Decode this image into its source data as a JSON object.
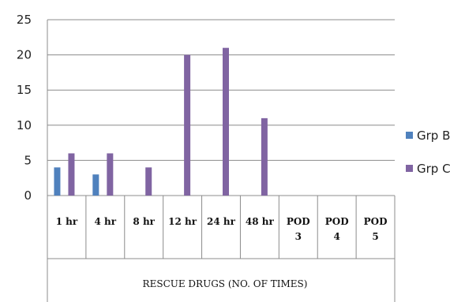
{
  "chart_data": {
    "type": "bar",
    "categories": [
      "1 hr",
      "4 hr",
      "8 hr",
      "12 hr",
      "24 hr",
      "48 hr",
      "POD 3",
      "POD 4",
      "POD 5"
    ],
    "series": [
      {
        "name": "Grp B",
        "values": [
          4,
          3,
          0,
          0,
          0,
          0,
          0,
          0,
          0
        ],
        "color": "#4f81bd"
      },
      {
        "name": "Grp C",
        "values": [
          6,
          6,
          4,
          20,
          21,
          11,
          0,
          0,
          0
        ],
        "color": "#8064a2"
      }
    ],
    "ylim": [
      0,
      25
    ],
    "yticks": [
      0,
      5,
      10,
      15,
      20,
      25
    ],
    "xlabel": "RESCUE DRUGS (NO. OF TIMES)",
    "ylabel": "",
    "title": "",
    "grid": true,
    "legend": "right"
  }
}
